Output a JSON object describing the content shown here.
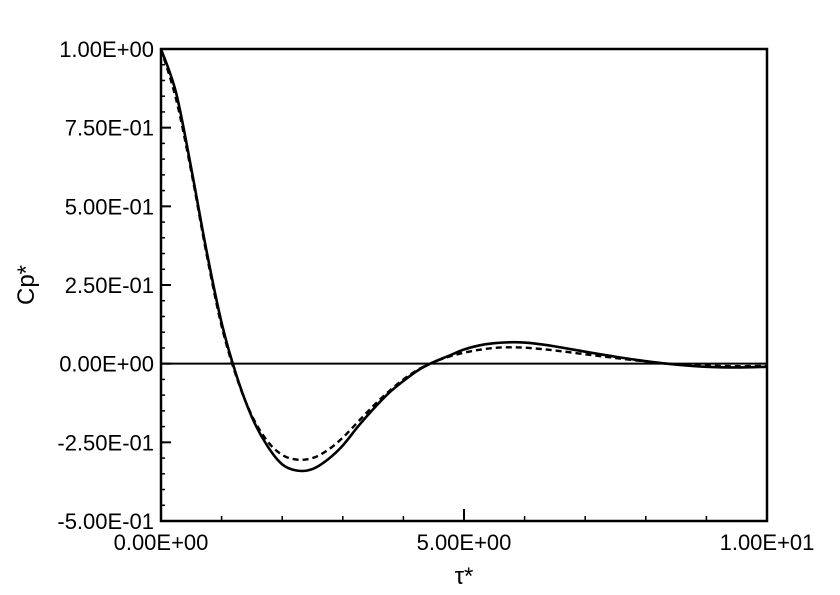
{
  "chart_data": {
    "type": "line",
    "title": "",
    "xlabel": "τ*",
    "ylabel": "Cp*",
    "xlim": [
      0,
      10
    ],
    "ylim": [
      -0.5,
      1.0
    ],
    "xticks": [
      {
        "value": 0,
        "label": "0.00E+00"
      },
      {
        "value": 5,
        "label": "5.00E+00"
      },
      {
        "value": 10,
        "label": "1.00E+01"
      }
    ],
    "yticks": [
      {
        "value": 1.0,
        "label": "1.00E+00"
      },
      {
        "value": 0.75,
        "label": "7.50E-01"
      },
      {
        "value": 0.5,
        "label": "5.00E-01"
      },
      {
        "value": 0.25,
        "label": "2.50E-01"
      },
      {
        "value": 0.0,
        "label": "0.00E+00"
      },
      {
        "value": -0.25,
        "label": "-2.50E-01"
      },
      {
        "value": -0.5,
        "label": "-5.00E-01"
      }
    ],
    "grid": false,
    "zero_line": true,
    "series": [
      {
        "style": "solid",
        "color": "#000000",
        "x": [
          0,
          0.25,
          0.5,
          0.75,
          1.0,
          1.25,
          1.5,
          1.75,
          2.0,
          2.25,
          2.5,
          2.75,
          3.0,
          3.25,
          3.5,
          3.75,
          4.0,
          4.25,
          4.5,
          4.75,
          5.0,
          5.25,
          5.5,
          5.75,
          6.0,
          6.25,
          6.5,
          7.0,
          7.5,
          8.0,
          8.5,
          9.0,
          9.5,
          10.0
        ],
        "y": [
          1.0,
          0.86,
          0.62,
          0.36,
          0.13,
          -0.04,
          -0.17,
          -0.26,
          -0.32,
          -0.34,
          -0.335,
          -0.305,
          -0.26,
          -0.2,
          -0.145,
          -0.095,
          -0.055,
          -0.02,
          0.005,
          0.025,
          0.045,
          0.058,
          0.065,
          0.068,
          0.067,
          0.062,
          0.055,
          0.038,
          0.022,
          0.008,
          -0.003,
          -0.01,
          -0.012,
          -0.01
        ]
      },
      {
        "style": "dashed",
        "color": "#000000",
        "x": [
          0,
          0.25,
          0.5,
          0.75,
          1.0,
          1.25,
          1.5,
          1.75,
          2.0,
          2.25,
          2.5,
          2.75,
          3.0,
          3.25,
          3.5,
          3.75,
          4.0,
          4.25,
          4.5,
          4.75,
          5.0,
          5.25,
          5.5,
          5.75,
          6.0,
          6.25,
          6.5,
          7.0,
          7.5,
          8.0,
          8.5,
          9.0,
          9.5,
          10.0
        ],
        "y": [
          1.0,
          0.84,
          0.61,
          0.35,
          0.12,
          -0.045,
          -0.165,
          -0.245,
          -0.29,
          -0.305,
          -0.3,
          -0.275,
          -0.235,
          -0.185,
          -0.135,
          -0.09,
          -0.05,
          -0.018,
          0.005,
          0.022,
          0.035,
          0.044,
          0.05,
          0.052,
          0.051,
          0.047,
          0.042,
          0.03,
          0.018,
          0.007,
          -0.002,
          -0.006,
          -0.008,
          -0.007
        ]
      }
    ]
  }
}
